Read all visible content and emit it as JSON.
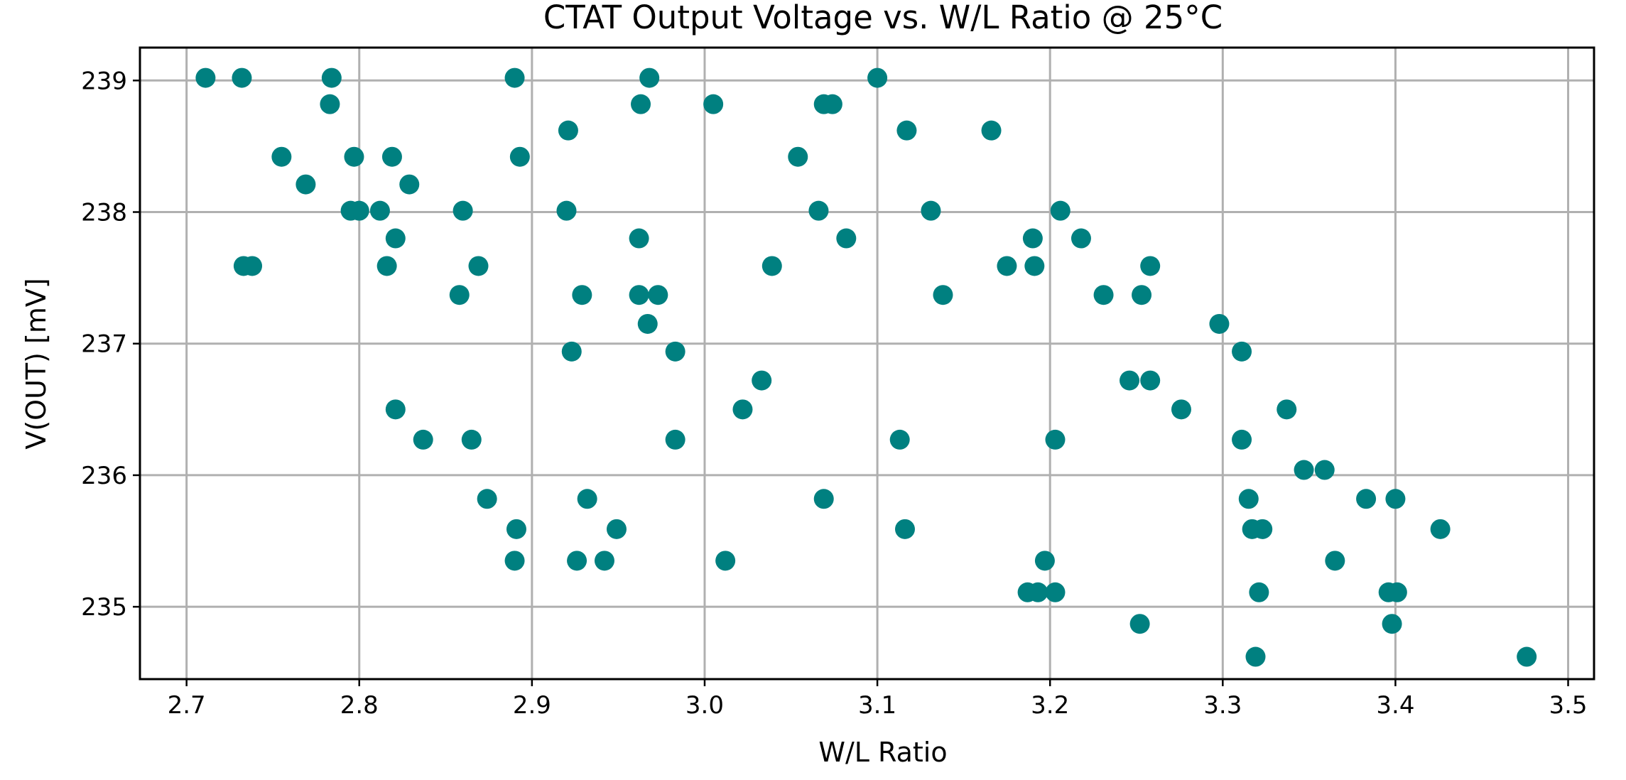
{
  "chart_data": {
    "type": "scatter",
    "title": "CTAT Output Voltage vs. W/L Ratio @ 25°C",
    "xlabel": "W/L Ratio",
    "ylabel": "V(OUT) [mV]",
    "xlim": [
      2.673,
      3.515
    ],
    "ylim": [
      234.45,
      239.25
    ],
    "xticks": [
      2.7,
      2.8,
      2.9,
      3.0,
      3.1,
      3.2,
      3.3,
      3.4,
      3.5
    ],
    "xtick_labels": [
      "2.7",
      "2.8",
      "2.9",
      "3.0",
      "3.1",
      "3.2",
      "3.3",
      "3.4",
      "3.5"
    ],
    "yticks": [
      235,
      236,
      237,
      238,
      239
    ],
    "ytick_labels": [
      "235",
      "236",
      "237",
      "238",
      "239"
    ],
    "grid": true,
    "marker_color": "#008080",
    "series": [
      {
        "name": "V(OUT)",
        "x": [
          2.711,
          2.732,
          2.784,
          2.89,
          2.968,
          3.1,
          2.783,
          2.963,
          3.005,
          3.069,
          3.074,
          2.921,
          3.117,
          3.166,
          2.755,
          2.797,
          2.819,
          2.893,
          3.054,
          2.769,
          2.829,
          2.795,
          2.8,
          2.812,
          2.86,
          2.92,
          3.066,
          3.131,
          3.206,
          2.821,
          2.962,
          3.082,
          3.19,
          3.218,
          2.733,
          2.738,
          2.816,
          2.869,
          3.039,
          3.175,
          3.191,
          3.258,
          2.858,
          2.929,
          2.962,
          2.973,
          3.138,
          3.231,
          3.253,
          2.967,
          3.298,
          2.923,
          2.983,
          3.311,
          3.033,
          3.246,
          3.258,
          2.821,
          3.022,
          3.276,
          3.337,
          2.837,
          2.865,
          2.983,
          3.113,
          3.203,
          3.311,
          3.347,
          3.359,
          2.874,
          2.932,
          3.069,
          3.315,
          3.383,
          3.4,
          2.891,
          2.949,
          3.116,
          3.317,
          3.323,
          3.426,
          2.89,
          2.926,
          2.942,
          3.012,
          3.197,
          3.365,
          3.187,
          3.193,
          3.203,
          3.321,
          3.396,
          3.401,
          3.252,
          3.398,
          3.319,
          3.476
        ],
        "y": [
          239.02,
          239.02,
          239.02,
          239.02,
          239.02,
          239.02,
          238.82,
          238.82,
          238.82,
          238.82,
          238.82,
          238.62,
          238.62,
          238.62,
          238.42,
          238.42,
          238.42,
          238.42,
          238.42,
          238.21,
          238.21,
          238.01,
          238.01,
          238.01,
          238.01,
          238.01,
          238.01,
          238.01,
          238.01,
          237.8,
          237.8,
          237.8,
          237.8,
          237.8,
          237.59,
          237.59,
          237.59,
          237.59,
          237.59,
          237.59,
          237.59,
          237.59,
          237.37,
          237.37,
          237.37,
          237.37,
          237.37,
          237.37,
          237.37,
          237.15,
          237.15,
          236.94,
          236.94,
          236.94,
          236.72,
          236.72,
          236.72,
          236.5,
          236.5,
          236.5,
          236.5,
          236.27,
          236.27,
          236.27,
          236.27,
          236.27,
          236.27,
          236.04,
          236.04,
          235.82,
          235.82,
          235.82,
          235.82,
          235.82,
          235.82,
          235.59,
          235.59,
          235.59,
          235.59,
          235.59,
          235.59,
          235.35,
          235.35,
          235.35,
          235.35,
          235.35,
          235.35,
          235.11,
          235.11,
          235.11,
          235.11,
          235.11,
          235.11,
          234.87,
          234.87,
          234.62,
          234.62
        ]
      }
    ]
  }
}
